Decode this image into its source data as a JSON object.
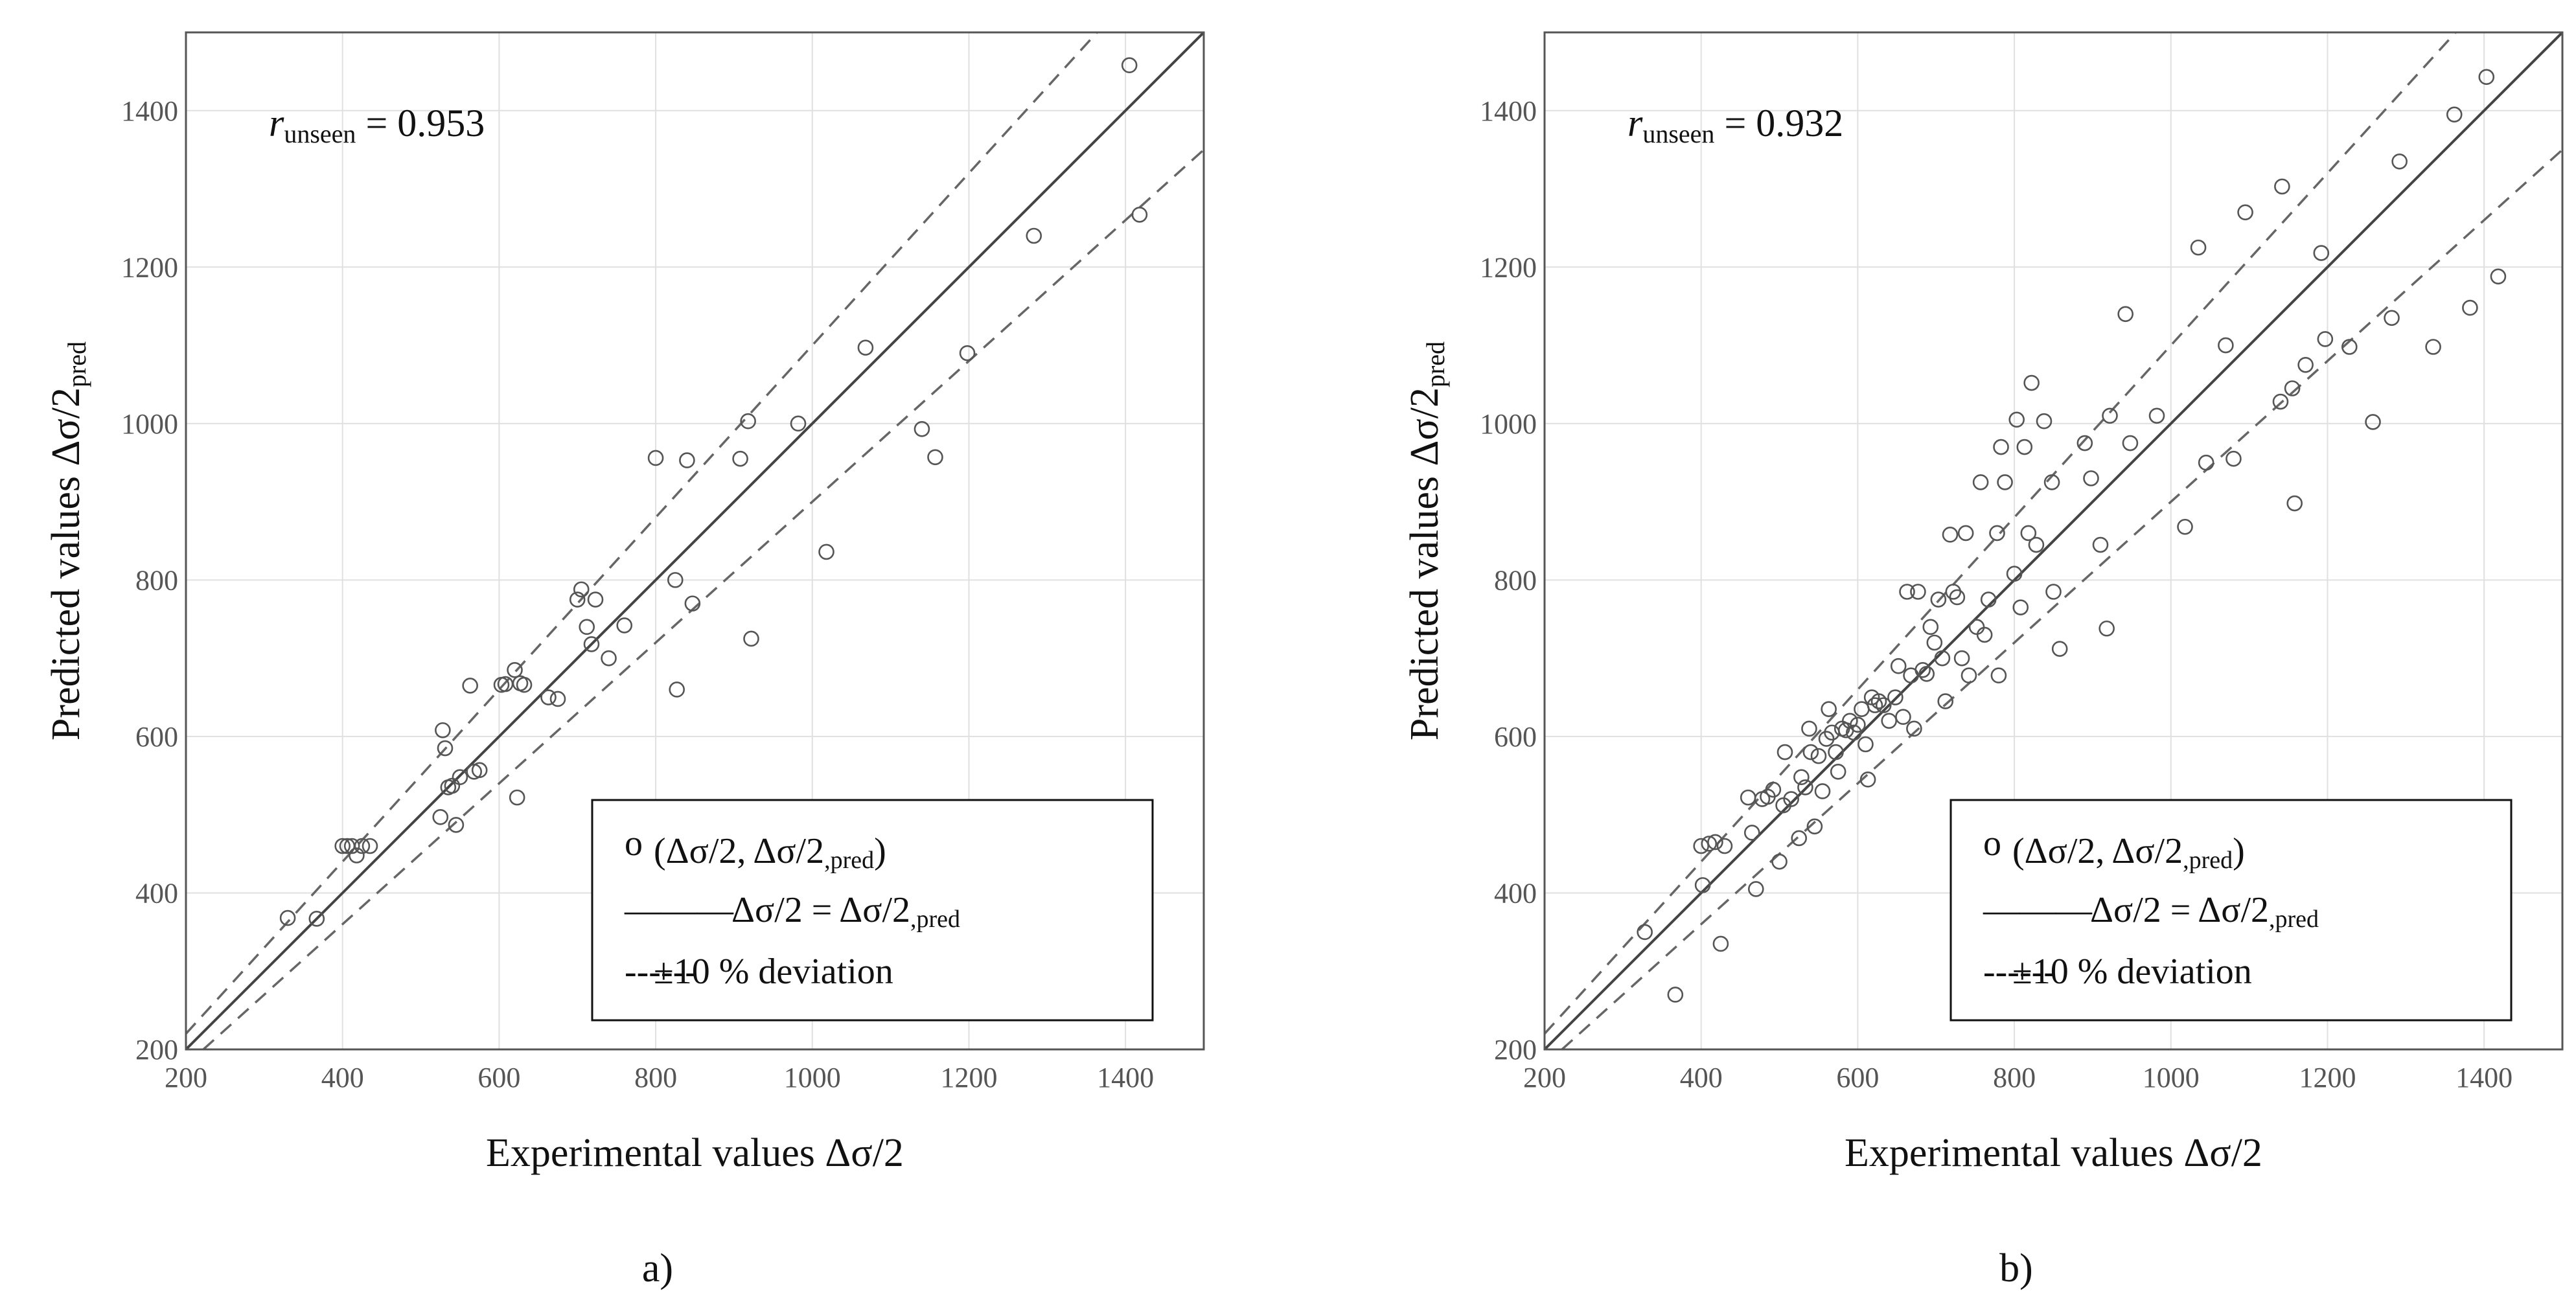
{
  "chart_data": [
    {
      "type": "scatter",
      "panel_label": "a)",
      "r_symbol": "r",
      "r_subscript": "unseen",
      "r_value": "= 0.953",
      "xlabel": "Experimental values Δσ/2",
      "ylabel_main": "Predicted values Δσ/2",
      "ylabel_sub": "pred",
      "xlim": [
        200,
        1500
      ],
      "ylim": [
        200,
        1500
      ],
      "xticks": [
        200,
        400,
        600,
        800,
        1000,
        1200,
        1400
      ],
      "yticks": [
        200,
        400,
        600,
        800,
        1000,
        1200,
        1400
      ],
      "grid": true,
      "legend_position": "bottom-right",
      "legend": [
        {
          "symbol": "o",
          "text": "(Δσ/2, Δσ/2",
          "sub": ",pred",
          "tail": ")"
        },
        {
          "symbol": "———",
          "text": "Δσ/2 = Δσ/2",
          "sub": ",pred",
          "tail": ""
        },
        {
          "symbol": "------",
          "text": "±10 % deviation",
          "sub": "",
          "tail": ""
        }
      ],
      "lines": [
        {
          "name": "Δσ/2 = Δσ/2,pred",
          "factor": 1.0,
          "style": "solid"
        },
        {
          "name": "+10 % deviation",
          "factor": 1.1,
          "style": "dashed"
        },
        {
          "name": "-10 % deviation",
          "factor": 0.9,
          "style": "dashed"
        }
      ],
      "points": [
        [
          330,
          368
        ],
        [
          367,
          367
        ],
        [
          400,
          460
        ],
        [
          406,
          460
        ],
        [
          412,
          460
        ],
        [
          418,
          448
        ],
        [
          425,
          460
        ],
        [
          435,
          460
        ],
        [
          525,
          497
        ],
        [
          528,
          608
        ],
        [
          531,
          585
        ],
        [
          535,
          535
        ],
        [
          540,
          537
        ],
        [
          545,
          487
        ],
        [
          550,
          548
        ],
        [
          563,
          665
        ],
        [
          568,
          555
        ],
        [
          575,
          557
        ],
        [
          603,
          666
        ],
        [
          608,
          667
        ],
        [
          620,
          685
        ],
        [
          623,
          522
        ],
        [
          627,
          668
        ],
        [
          632,
          666
        ],
        [
          663,
          650
        ],
        [
          675,
          648
        ],
        [
          700,
          775
        ],
        [
          705,
          788
        ],
        [
          712,
          740
        ],
        [
          718,
          718
        ],
        [
          723,
          775
        ],
        [
          740,
          700
        ],
        [
          760,
          742
        ],
        [
          800,
          956
        ],
        [
          825,
          800
        ],
        [
          827,
          660
        ],
        [
          840,
          953
        ],
        [
          847,
          770
        ],
        [
          908,
          955
        ],
        [
          918,
          1003
        ],
        [
          922,
          725
        ],
        [
          982,
          1000
        ],
        [
          1018,
          836
        ],
        [
          1068,
          1097
        ],
        [
          1140,
          993
        ],
        [
          1157,
          957
        ],
        [
          1198,
          1090
        ],
        [
          1283,
          1240
        ],
        [
          1405,
          1458
        ],
        [
          1418,
          1267
        ]
      ]
    },
    {
      "type": "scatter",
      "panel_label": "b)",
      "r_symbol": "r",
      "r_subscript": "unseen",
      "r_value": "= 0.932",
      "xlabel": "Experimental values Δσ/2",
      "ylabel_main": "Predicted values Δσ/2",
      "ylabel_sub": "pred",
      "xlim": [
        200,
        1500
      ],
      "ylim": [
        200,
        1500
      ],
      "xticks": [
        200,
        400,
        600,
        800,
        1000,
        1200,
        1400
      ],
      "yticks": [
        200,
        400,
        600,
        800,
        1000,
        1200,
        1400
      ],
      "grid": true,
      "legend_position": "bottom-right",
      "legend": [
        {
          "symbol": "o",
          "text": "(Δσ/2, Δσ/2",
          "sub": ",pred",
          "tail": ")"
        },
        {
          "symbol": "———",
          "text": "Δσ/2 = Δσ/2",
          "sub": ",pred",
          "tail": ""
        },
        {
          "symbol": "------",
          "text": "±10 % deviation",
          "sub": "",
          "tail": ""
        }
      ],
      "lines": [
        {
          "name": "Δσ/2 = Δσ/2,pred",
          "factor": 1.0,
          "style": "solid"
        },
        {
          "name": "+10 % deviation",
          "factor": 1.1,
          "style": "dashed"
        },
        {
          "name": "-10 % deviation",
          "factor": 0.9,
          "style": "dashed"
        }
      ],
      "points": [
        [
          328,
          350
        ],
        [
          367,
          270
        ],
        [
          400,
          460
        ],
        [
          402,
          410
        ],
        [
          410,
          463
        ],
        [
          418,
          465
        ],
        [
          425,
          335
        ],
        [
          430,
          460
        ],
        [
          460,
          522
        ],
        [
          465,
          477
        ],
        [
          470,
          405
        ],
        [
          478,
          520
        ],
        [
          485,
          523
        ],
        [
          492,
          532
        ],
        [
          500,
          440
        ],
        [
          505,
          512
        ],
        [
          507,
          580
        ],
        [
          515,
          520
        ],
        [
          525,
          470
        ],
        [
          528,
          548
        ],
        [
          533,
          535
        ],
        [
          538,
          610
        ],
        [
          540,
          580
        ],
        [
          545,
          485
        ],
        [
          550,
          575
        ],
        [
          555,
          530
        ],
        [
          560,
          597
        ],
        [
          563,
          635
        ],
        [
          567,
          605
        ],
        [
          572,
          580
        ],
        [
          575,
          555
        ],
        [
          580,
          610
        ],
        [
          585,
          608
        ],
        [
          590,
          620
        ],
        [
          595,
          605
        ],
        [
          600,
          615
        ],
        [
          605,
          635
        ],
        [
          610,
          590
        ],
        [
          613,
          545
        ],
        [
          618,
          650
        ],
        [
          622,
          640
        ],
        [
          627,
          645
        ],
        [
          633,
          640
        ],
        [
          640,
          620
        ],
        [
          648,
          650
        ],
        [
          652,
          690
        ],
        [
          658,
          625
        ],
        [
          663,
          785
        ],
        [
          668,
          678
        ],
        [
          672,
          610
        ],
        [
          677,
          785
        ],
        [
          683,
          685
        ],
        [
          688,
          680
        ],
        [
          693,
          740
        ],
        [
          698,
          720
        ],
        [
          703,
          775
        ],
        [
          708,
          700
        ],
        [
          712,
          645
        ],
        [
          718,
          858
        ],
        [
          722,
          785
        ],
        [
          727,
          778
        ],
        [
          733,
          700
        ],
        [
          738,
          860
        ],
        [
          742,
          678
        ],
        [
          752,
          740
        ],
        [
          757,
          925
        ],
        [
          762,
          730
        ],
        [
          767,
          775
        ],
        [
          778,
          860
        ],
        [
          780,
          678
        ],
        [
          783,
          970
        ],
        [
          788,
          925
        ],
        [
          800,
          808
        ],
        [
          803,
          1005
        ],
        [
          808,
          765
        ],
        [
          813,
          970
        ],
        [
          818,
          860
        ],
        [
          822,
          1052
        ],
        [
          828,
          845
        ],
        [
          838,
          1003
        ],
        [
          848,
          925
        ],
        [
          850,
          785
        ],
        [
          858,
          712
        ],
        [
          890,
          975
        ],
        [
          898,
          930
        ],
        [
          910,
          845
        ],
        [
          918,
          738
        ],
        [
          922,
          1010
        ],
        [
          942,
          1140
        ],
        [
          948,
          975
        ],
        [
          982,
          1010
        ],
        [
          1018,
          868
        ],
        [
          1035,
          1225
        ],
        [
          1045,
          950
        ],
        [
          1070,
          1100
        ],
        [
          1080,
          955
        ],
        [
          1095,
          1270
        ],
        [
          1140,
          1028
        ],
        [
          1142,
          1303
        ],
        [
          1155,
          1045
        ],
        [
          1158,
          898
        ],
        [
          1172,
          1075
        ],
        [
          1192,
          1218
        ],
        [
          1197,
          1108
        ],
        [
          1228,
          1098
        ],
        [
          1258,
          1002
        ],
        [
          1282,
          1135
        ],
        [
          1292,
          1335
        ],
        [
          1335,
          1098
        ],
        [
          1362,
          1395
        ],
        [
          1382,
          1148
        ],
        [
          1403,
          1443
        ],
        [
          1418,
          1188
        ]
      ]
    }
  ]
}
